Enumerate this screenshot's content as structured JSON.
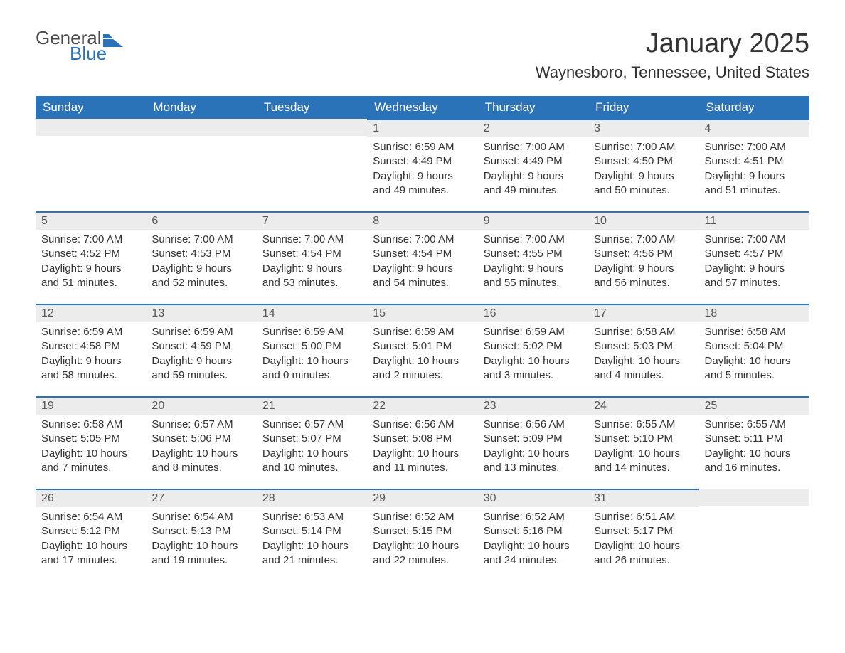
{
  "logo": {
    "text1": "General",
    "text2": "Blue",
    "icon_color": "#2a73b8"
  },
  "title": "January 2025",
  "location": "Waynesboro, Tennessee, United States",
  "colors": {
    "header_bg": "#2a73b8",
    "header_fg": "#ffffff",
    "daybar_bg": "#ececec",
    "daybar_border": "#2a73b8",
    "text": "#333333",
    "background": "#ffffff"
  },
  "typography": {
    "title_fontsize": 38,
    "location_fontsize": 22,
    "header_fontsize": 17,
    "body_fontsize": 15
  },
  "day_headers": [
    "Sunday",
    "Monday",
    "Tuesday",
    "Wednesday",
    "Thursday",
    "Friday",
    "Saturday"
  ],
  "weeks": [
    [
      null,
      null,
      null,
      {
        "n": "1",
        "sunrise": "Sunrise: 6:59 AM",
        "sunset": "Sunset: 4:49 PM",
        "dl1": "Daylight: 9 hours",
        "dl2": "and 49 minutes."
      },
      {
        "n": "2",
        "sunrise": "Sunrise: 7:00 AM",
        "sunset": "Sunset: 4:49 PM",
        "dl1": "Daylight: 9 hours",
        "dl2": "and 49 minutes."
      },
      {
        "n": "3",
        "sunrise": "Sunrise: 7:00 AM",
        "sunset": "Sunset: 4:50 PM",
        "dl1": "Daylight: 9 hours",
        "dl2": "and 50 minutes."
      },
      {
        "n": "4",
        "sunrise": "Sunrise: 7:00 AM",
        "sunset": "Sunset: 4:51 PM",
        "dl1": "Daylight: 9 hours",
        "dl2": "and 51 minutes."
      }
    ],
    [
      {
        "n": "5",
        "sunrise": "Sunrise: 7:00 AM",
        "sunset": "Sunset: 4:52 PM",
        "dl1": "Daylight: 9 hours",
        "dl2": "and 51 minutes."
      },
      {
        "n": "6",
        "sunrise": "Sunrise: 7:00 AM",
        "sunset": "Sunset: 4:53 PM",
        "dl1": "Daylight: 9 hours",
        "dl2": "and 52 minutes."
      },
      {
        "n": "7",
        "sunrise": "Sunrise: 7:00 AM",
        "sunset": "Sunset: 4:54 PM",
        "dl1": "Daylight: 9 hours",
        "dl2": "and 53 minutes."
      },
      {
        "n": "8",
        "sunrise": "Sunrise: 7:00 AM",
        "sunset": "Sunset: 4:54 PM",
        "dl1": "Daylight: 9 hours",
        "dl2": "and 54 minutes."
      },
      {
        "n": "9",
        "sunrise": "Sunrise: 7:00 AM",
        "sunset": "Sunset: 4:55 PM",
        "dl1": "Daylight: 9 hours",
        "dl2": "and 55 minutes."
      },
      {
        "n": "10",
        "sunrise": "Sunrise: 7:00 AM",
        "sunset": "Sunset: 4:56 PM",
        "dl1": "Daylight: 9 hours",
        "dl2": "and 56 minutes."
      },
      {
        "n": "11",
        "sunrise": "Sunrise: 7:00 AM",
        "sunset": "Sunset: 4:57 PM",
        "dl1": "Daylight: 9 hours",
        "dl2": "and 57 minutes."
      }
    ],
    [
      {
        "n": "12",
        "sunrise": "Sunrise: 6:59 AM",
        "sunset": "Sunset: 4:58 PM",
        "dl1": "Daylight: 9 hours",
        "dl2": "and 58 minutes."
      },
      {
        "n": "13",
        "sunrise": "Sunrise: 6:59 AM",
        "sunset": "Sunset: 4:59 PM",
        "dl1": "Daylight: 9 hours",
        "dl2": "and 59 minutes."
      },
      {
        "n": "14",
        "sunrise": "Sunrise: 6:59 AM",
        "sunset": "Sunset: 5:00 PM",
        "dl1": "Daylight: 10 hours",
        "dl2": "and 0 minutes."
      },
      {
        "n": "15",
        "sunrise": "Sunrise: 6:59 AM",
        "sunset": "Sunset: 5:01 PM",
        "dl1": "Daylight: 10 hours",
        "dl2": "and 2 minutes."
      },
      {
        "n": "16",
        "sunrise": "Sunrise: 6:59 AM",
        "sunset": "Sunset: 5:02 PM",
        "dl1": "Daylight: 10 hours",
        "dl2": "and 3 minutes."
      },
      {
        "n": "17",
        "sunrise": "Sunrise: 6:58 AM",
        "sunset": "Sunset: 5:03 PM",
        "dl1": "Daylight: 10 hours",
        "dl2": "and 4 minutes."
      },
      {
        "n": "18",
        "sunrise": "Sunrise: 6:58 AM",
        "sunset": "Sunset: 5:04 PM",
        "dl1": "Daylight: 10 hours",
        "dl2": "and 5 minutes."
      }
    ],
    [
      {
        "n": "19",
        "sunrise": "Sunrise: 6:58 AM",
        "sunset": "Sunset: 5:05 PM",
        "dl1": "Daylight: 10 hours",
        "dl2": "and 7 minutes."
      },
      {
        "n": "20",
        "sunrise": "Sunrise: 6:57 AM",
        "sunset": "Sunset: 5:06 PM",
        "dl1": "Daylight: 10 hours",
        "dl2": "and 8 minutes."
      },
      {
        "n": "21",
        "sunrise": "Sunrise: 6:57 AM",
        "sunset": "Sunset: 5:07 PM",
        "dl1": "Daylight: 10 hours",
        "dl2": "and 10 minutes."
      },
      {
        "n": "22",
        "sunrise": "Sunrise: 6:56 AM",
        "sunset": "Sunset: 5:08 PM",
        "dl1": "Daylight: 10 hours",
        "dl2": "and 11 minutes."
      },
      {
        "n": "23",
        "sunrise": "Sunrise: 6:56 AM",
        "sunset": "Sunset: 5:09 PM",
        "dl1": "Daylight: 10 hours",
        "dl2": "and 13 minutes."
      },
      {
        "n": "24",
        "sunrise": "Sunrise: 6:55 AM",
        "sunset": "Sunset: 5:10 PM",
        "dl1": "Daylight: 10 hours",
        "dl2": "and 14 minutes."
      },
      {
        "n": "25",
        "sunrise": "Sunrise: 6:55 AM",
        "sunset": "Sunset: 5:11 PM",
        "dl1": "Daylight: 10 hours",
        "dl2": "and 16 minutes."
      }
    ],
    [
      {
        "n": "26",
        "sunrise": "Sunrise: 6:54 AM",
        "sunset": "Sunset: 5:12 PM",
        "dl1": "Daylight: 10 hours",
        "dl2": "and 17 minutes."
      },
      {
        "n": "27",
        "sunrise": "Sunrise: 6:54 AM",
        "sunset": "Sunset: 5:13 PM",
        "dl1": "Daylight: 10 hours",
        "dl2": "and 19 minutes."
      },
      {
        "n": "28",
        "sunrise": "Sunrise: 6:53 AM",
        "sunset": "Sunset: 5:14 PM",
        "dl1": "Daylight: 10 hours",
        "dl2": "and 21 minutes."
      },
      {
        "n": "29",
        "sunrise": "Sunrise: 6:52 AM",
        "sunset": "Sunset: 5:15 PM",
        "dl1": "Daylight: 10 hours",
        "dl2": "and 22 minutes."
      },
      {
        "n": "30",
        "sunrise": "Sunrise: 6:52 AM",
        "sunset": "Sunset: 5:16 PM",
        "dl1": "Daylight: 10 hours",
        "dl2": "and 24 minutes."
      },
      {
        "n": "31",
        "sunrise": "Sunrise: 6:51 AM",
        "sunset": "Sunset: 5:17 PM",
        "dl1": "Daylight: 10 hours",
        "dl2": "and 26 minutes."
      },
      null
    ]
  ]
}
